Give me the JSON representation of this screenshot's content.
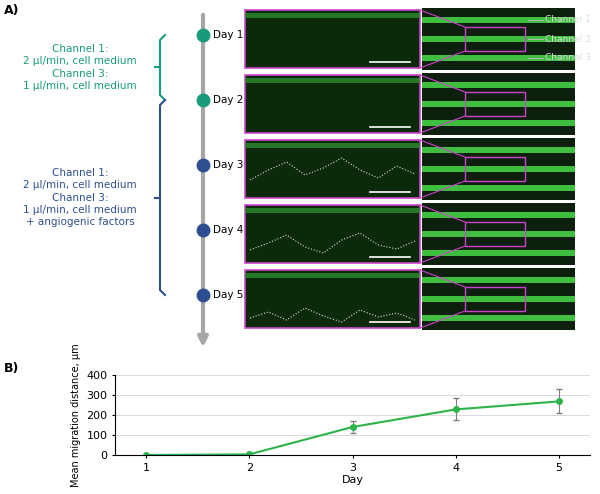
{
  "panel_a": {
    "label": "A)",
    "conditions": [
      {
        "lines": [
          "Channel 1:",
          "2 µl/min, cell medium",
          "Channel 3:",
          "1 µl/min, cell medium"
        ],
        "color": "#1a9a7c",
        "days": [
          "Day 1",
          "Day 2"
        ]
      },
      {
        "lines": [
          "Channel 1:",
          "2 µl/min, cell medium",
          "Channel 3:",
          "1 µl/min, cell medium",
          "+ angiogenic factors"
        ],
        "color": "#2e4f8f",
        "days": [
          "Day 3",
          "Day 4",
          "Day 5"
        ]
      }
    ],
    "channel_labels": [
      "Channel 1",
      "Channel 2",
      "Channel 3"
    ]
  },
  "chart_data": {
    "label": "B)",
    "type": "line",
    "categories": [
      "1",
      "2",
      "3",
      "4",
      "5"
    ],
    "values": [
      0,
      3,
      140,
      228,
      268
    ],
    "errors": [
      0,
      2,
      30,
      55,
      60
    ],
    "x_label": "Day",
    "y_label": "Mean migration distance, µm",
    "ylim": [
      0,
      400
    ],
    "yticks": [
      0,
      100,
      200,
      300,
      400
    ],
    "grid": true,
    "color": "#2eb34a",
    "marker": "circle"
  }
}
